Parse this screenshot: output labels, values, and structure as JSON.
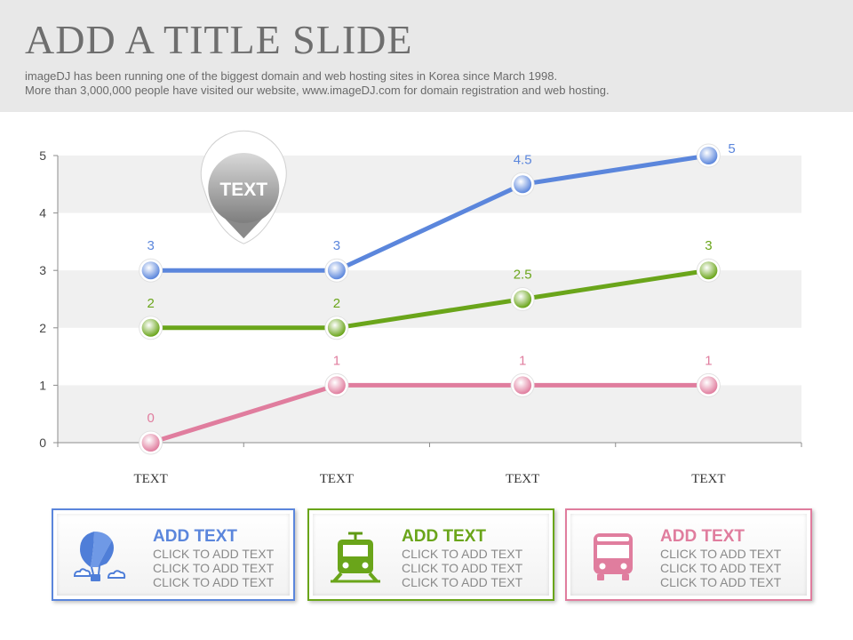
{
  "header": {
    "title": "ADD A TITLE SLIDE",
    "subtitle_line1": "imageDJ has been running one of the biggest domain and web hosting sites in Korea since March 1998.",
    "subtitle_line2": "More than 3,000,000 people have visited our website,  www.imageDJ.com for domain registration and web hosting."
  },
  "chart_data": {
    "type": "line",
    "categories": [
      "TEXT",
      "TEXT",
      "TEXT",
      "TEXT"
    ],
    "ylim": [
      0,
      5
    ],
    "yticks": [
      "0",
      "1",
      "2",
      "3",
      "4",
      "5"
    ],
    "grid": "alternating horizontal bands",
    "series": [
      {
        "values": [
          3,
          3,
          4.5,
          5
        ],
        "labels": [
          "3",
          "3",
          "4.5",
          "5"
        ],
        "color": "#5b86dc"
      },
      {
        "values": [
          2,
          2,
          2.5,
          3
        ],
        "labels": [
          "2",
          "2",
          "2.5",
          "3"
        ],
        "color": "#6aa51a"
      },
      {
        "values": [
          0,
          1,
          1,
          1
        ],
        "labels": [
          "0",
          "1",
          "1",
          "1"
        ],
        "color": "#e07d9e"
      }
    ],
    "callout": {
      "text": "TEXT",
      "near_category_index": 0.5,
      "near_value": 3
    }
  },
  "cards": [
    {
      "icon": "hot-air-balloon-icon",
      "color": "#5b86dc",
      "heading": "ADD TEXT",
      "lines": [
        "CLICK TO ADD TEXT",
        "CLICK TO ADD TEXT",
        "CLICK TO ADD TEXT"
      ]
    },
    {
      "icon": "train-icon",
      "color": "#6aa51a",
      "heading": "ADD TEXT",
      "lines": [
        "CLICK TO ADD TEXT",
        "CLICK TO ADD TEXT",
        "CLICK TO ADD TEXT"
      ]
    },
    {
      "icon": "bus-icon",
      "color": "#e07d9e",
      "heading": "ADD TEXT",
      "lines": [
        "CLICK TO ADD TEXT",
        "CLICK TO ADD TEXT",
        "CLICK TO ADD TEXT"
      ]
    }
  ]
}
